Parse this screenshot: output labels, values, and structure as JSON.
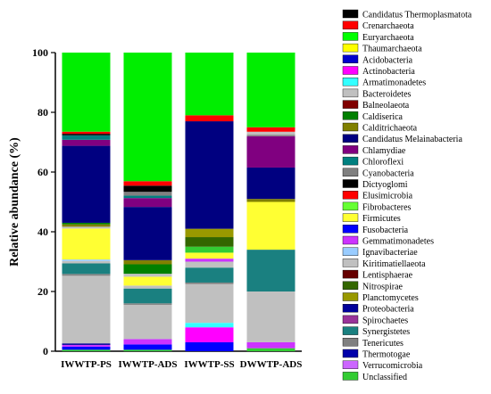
{
  "chart_data": {
    "type": "bar",
    "stacked": true,
    "ylabel": "Relative abundance (%)",
    "xlabel": "",
    "ylim": [
      0,
      100
    ],
    "yticks": [
      0,
      20,
      40,
      60,
      80,
      100
    ],
    "grid": false,
    "legend_position": "right",
    "categories": [
      "IWWTP-PS",
      "IWWTP-ADS",
      "IWWTP-SS",
      "DWWTP-ADS"
    ],
    "series": [
      {
        "name": "Unclassified",
        "color": "#33cc33",
        "values": [
          0.5,
          0.5,
          0.5,
          0.5
        ]
      },
      {
        "name": "Verrucomicrobia",
        "color": "#cc66ff",
        "values": [
          0.2,
          0.2,
          0.2,
          0.2
        ]
      },
      {
        "name": "Thermotogae",
        "color": "#0000aa",
        "values": [
          0.2,
          0.2,
          0.2,
          0.2
        ]
      },
      {
        "name": "Tenericutes",
        "color": "#808080",
        "values": [
          0.1,
          0.1,
          0.1,
          0.1
        ]
      },
      {
        "name": "Synergistetes",
        "color": "#1a8080",
        "values": [
          0.3,
          0.3,
          0.3,
          0.3
        ]
      },
      {
        "name": "Spirochaetes",
        "color": "#993399",
        "values": [
          0.3,
          0.3,
          0.3,
          0.3
        ]
      },
      {
        "name": "Proteobacteria",
        "color": "#000099",
        "values": [
          0.5,
          0.5,
          0.5,
          0.3
        ]
      },
      {
        "name": "Planctomycetes",
        "color": "#999900",
        "values": [
          0.2,
          0.3,
          0.5,
          0.3
        ]
      },
      {
        "name": "Nitrospirae",
        "color": "#336600",
        "values": [
          0.2,
          0.2,
          0.2,
          0.2
        ]
      },
      {
        "name": "Lentisphaerae",
        "color": "#660000",
        "values": [
          0.1,
          0.1,
          0.1,
          0.1
        ]
      },
      {
        "name": "Kiritimatiellaeota",
        "color": "#c0c0c0",
        "values": [
          0.1,
          0.1,
          0.1,
          0.1
        ]
      },
      {
        "name": "Ignavibacteriae",
        "color": "#99ccff",
        "values": [
          0.1,
          0.1,
          0.1,
          0.1
        ]
      },
      {
        "name": "Gemmatimonadetes",
        "color": "#cc33ff",
        "values": [
          0.2,
          1.4,
          4.5,
          1.8
        ]
      },
      {
        "name": "Fusobacteria",
        "color": "#0000ff",
        "values": [
          1.0,
          1.2,
          3.0,
          0.6
        ]
      },
      {
        "name": "Firmicutes",
        "color": "#ffff33",
        "values": [
          0.5,
          0.3,
          0.3,
          0.3
        ]
      },
      {
        "name": "Fibrobacteres",
        "color": "#66ff33",
        "values": [
          0.3,
          0.3,
          0.4,
          0.3
        ]
      },
      {
        "name": "Elusimicrobia",
        "color": "#ff0000",
        "values": [
          0.3,
          0.3,
          0.3,
          0.3
        ]
      },
      {
        "name": "Dictyoglomi",
        "color": "#000000",
        "values": [
          0.2,
          0.2,
          0.2,
          0.2
        ]
      },
      {
        "name": "Cyanobacteria",
        "color": "#808080",
        "values": [
          0.3,
          0.3,
          0.3,
          0.3
        ]
      },
      {
        "name": "Chloroflexi",
        "color": "#008080",
        "values": [
          0.3,
          0.3,
          0.3,
          0.3
        ]
      },
      {
        "name": "Chlamydiae",
        "color": "#800080",
        "values": [
          0.2,
          0.2,
          0.2,
          0.2
        ]
      },
      {
        "name": "Candidatus Melainabacteria",
        "color": "#000080",
        "values": [
          0.2,
          0.2,
          0.2,
          0.2
        ]
      },
      {
        "name": "Calditrichaeota",
        "color": "#808000",
        "values": [
          0.1,
          0.1,
          0.1,
          0.1
        ]
      },
      {
        "name": "Caldiserica",
        "color": "#008000",
        "values": [
          0.1,
          0.1,
          0.1,
          0.1
        ]
      },
      {
        "name": "Balneolaeota",
        "color": "#800000",
        "values": [
          0.1,
          0.1,
          0.1,
          0.1
        ]
      },
      {
        "name": "Bacteroidetes",
        "color": "#c0c0c0",
        "values": [
          22.0,
          12.0,
          12.5,
          16.5
        ]
      },
      {
        "name": "Armatimonadetes",
        "color": "#33ffff",
        "values": [
          0.1,
          0.1,
          1.0,
          0.1
        ]
      },
      {
        "name": "Actinobacteria",
        "color": "#ff00ff",
        "values": [
          0.2,
          0.4,
          0.3,
          0.4
        ]
      },
      {
        "name": "Acidobacteria",
        "color": "#0000cc",
        "values": [
          0.3,
          0.4,
          0.4,
          0.3
        ]
      },
      {
        "name": "Thaumarchaeota",
        "color": "#ffff00",
        "values": [
          0.2,
          0.2,
          0.2,
          0.2
        ]
      },
      {
        "name": "Euryarchaeota",
        "color": "#00ff00",
        "values": [
          0.1,
          0.1,
          0.1,
          0.1
        ]
      },
      {
        "name": "Crenarchaeota",
        "color": "#ff0000",
        "values": [
          0.1,
          0.1,
          0.1,
          0.1
        ]
      },
      {
        "name": "Candidatus Thermoplasmatota",
        "color": "#000000",
        "values": [
          0.1,
          0.1,
          0.1,
          0.1
        ]
      }
    ],
    "segments": [
      [
        {
          "v": 0.5,
          "c": "#33cc33"
        },
        {
          "v": 1.0,
          "c": "#0000ff"
        },
        {
          "v": 0.6,
          "c": "#cc33ff"
        },
        {
          "v": 0.5,
          "c": "#000099"
        },
        {
          "v": 22.5,
          "c": "#c0c0c0"
        },
        {
          "v": 0.6,
          "c": "#808080"
        },
        {
          "v": 3.5,
          "c": "#1a8080"
        },
        {
          "v": 0.8,
          "c": "#c0c0c0"
        },
        {
          "v": 0.5,
          "c": "#99ccff"
        },
        {
          "v": 10.3,
          "c": "#ffff33"
        },
        {
          "v": 0.6,
          "c": "#c0c0c0"
        },
        {
          "v": 0.8,
          "c": "#808000"
        },
        {
          "v": 0.5,
          "c": "#008000"
        },
        {
          "v": 25.6,
          "c": "#000080"
        },
        {
          "v": 2.0,
          "c": "#800080"
        },
        {
          "v": 1.5,
          "c": "#008080"
        },
        {
          "v": 0.5,
          "c": "#000000"
        },
        {
          "v": 0.7,
          "c": "#ff0000"
        },
        {
          "v": 26.3,
          "c": "#00ee00"
        }
      ],
      [
        {
          "v": 0.5,
          "c": "#33cc33"
        },
        {
          "v": 1.8,
          "c": "#0000ff"
        },
        {
          "v": 1.8,
          "c": "#cc33ff"
        },
        {
          "v": 11.6,
          "c": "#c0c0c0"
        },
        {
          "v": 0.5,
          "c": "#808080"
        },
        {
          "v": 5.0,
          "c": "#1a8080"
        },
        {
          "v": 1.0,
          "c": "#c0c0c0"
        },
        {
          "v": 3.0,
          "c": "#ffff33"
        },
        {
          "v": 1.0,
          "c": "#c0c0c0"
        },
        {
          "v": 3.2,
          "c": "#008000"
        },
        {
          "v": 1.4,
          "c": "#808000"
        },
        {
          "v": 18.0,
          "c": "#000080"
        },
        {
          "v": 3.0,
          "c": "#800080"
        },
        {
          "v": 0.8,
          "c": "#008080"
        },
        {
          "v": 1.3,
          "c": "#808080"
        },
        {
          "v": 2.1,
          "c": "#000000"
        },
        {
          "v": 1.5,
          "c": "#ff0000"
        },
        {
          "v": 43.5,
          "c": "#00ee00"
        }
      ],
      [
        {
          "v": 3.0,
          "c": "#0000ff"
        },
        {
          "v": 5.0,
          "c": "#ff00ff"
        },
        {
          "v": 1.5,
          "c": "#33ffff"
        },
        {
          "v": 13.0,
          "c": "#c0c0c0"
        },
        {
          "v": 0.5,
          "c": "#808080"
        },
        {
          "v": 5.0,
          "c": "#1a8080"
        },
        {
          "v": 2.0,
          "c": "#c0c0c0"
        },
        {
          "v": 1.0,
          "c": "#cc33ff"
        },
        {
          "v": 2.0,
          "c": "#ffff33"
        },
        {
          "v": 2.0,
          "c": "#33cc33"
        },
        {
          "v": 3.2,
          "c": "#336600"
        },
        {
          "v": 2.8,
          "c": "#999900"
        },
        {
          "v": 36.0,
          "c": "#000080"
        },
        {
          "v": 2.0,
          "c": "#ff0000"
        },
        {
          "v": 21.0,
          "c": "#00ee00"
        }
      ],
      [
        {
          "v": 1.0,
          "c": "#33cc33"
        },
        {
          "v": 2.0,
          "c": "#cc33ff"
        },
        {
          "v": 17.0,
          "c": "#c0c0c0"
        },
        {
          "v": 14.0,
          "c": "#1a8080"
        },
        {
          "v": 16.0,
          "c": "#ffff33"
        },
        {
          "v": 1.0,
          "c": "#808000"
        },
        {
          "v": 10.5,
          "c": "#000080"
        },
        {
          "v": 10.5,
          "c": "#800080"
        },
        {
          "v": 0.5,
          "c": "#808080"
        },
        {
          "v": 1.0,
          "c": "#c0c0c0"
        },
        {
          "v": 1.5,
          "c": "#ff0000"
        },
        {
          "v": 25.0,
          "c": "#00ee00"
        }
      ]
    ]
  },
  "legend": [
    {
      "label": "Candidatus Thermoplasmatota",
      "color": "#000000"
    },
    {
      "label": "Crenarchaeota",
      "color": "#ff0000"
    },
    {
      "label": "Euryarchaeota",
      "color": "#00ff00"
    },
    {
      "label": "Thaumarchaeota",
      "color": "#ffff00"
    },
    {
      "label": "Acidobacteria",
      "color": "#0000cc"
    },
    {
      "label": "Actinobacteria",
      "color": "#ff00ff"
    },
    {
      "label": "Armatimonadetes",
      "color": "#33ffff"
    },
    {
      "label": "Bacteroidetes",
      "color": "#c0c0c0"
    },
    {
      "label": "Balneolaeota",
      "color": "#800000"
    },
    {
      "label": "Caldiserica",
      "color": "#008000"
    },
    {
      "label": "Calditrichaeota",
      "color": "#808000"
    },
    {
      "label": "Candidatus Melainabacteria",
      "color": "#000080"
    },
    {
      "label": "Chlamydiae",
      "color": "#800080"
    },
    {
      "label": "Chloroflexi",
      "color": "#008080"
    },
    {
      "label": "Cyanobacteria",
      "color": "#808080"
    },
    {
      "label": "Dictyoglomi",
      "color": "#000000"
    },
    {
      "label": "Elusimicrobia",
      "color": "#ff0000"
    },
    {
      "label": "Fibrobacteres",
      "color": "#66ff33"
    },
    {
      "label": "Firmicutes",
      "color": "#ffff33"
    },
    {
      "label": "Fusobacteria",
      "color": "#0000ff"
    },
    {
      "label": "Gemmatimonadetes",
      "color": "#cc33ff"
    },
    {
      "label": "Ignavibacteriae",
      "color": "#99ccff"
    },
    {
      "label": "Kiritimatiellaeota",
      "color": "#c0c0c0"
    },
    {
      "label": "Lentisphaerae",
      "color": "#660000"
    },
    {
      "label": "Nitrospirae",
      "color": "#336600"
    },
    {
      "label": "Planctomycetes",
      "color": "#999900"
    },
    {
      "label": "Proteobacteria",
      "color": "#000099"
    },
    {
      "label": "Spirochaetes",
      "color": "#993399"
    },
    {
      "label": "Synergistetes",
      "color": "#1a8080"
    },
    {
      "label": "Tenericutes",
      "color": "#808080"
    },
    {
      "label": "Thermotogae",
      "color": "#0000aa"
    },
    {
      "label": "Verrucomicrobia",
      "color": "#cc66ff"
    },
    {
      "label": "Unclassified",
      "color": "#33cc33"
    }
  ]
}
